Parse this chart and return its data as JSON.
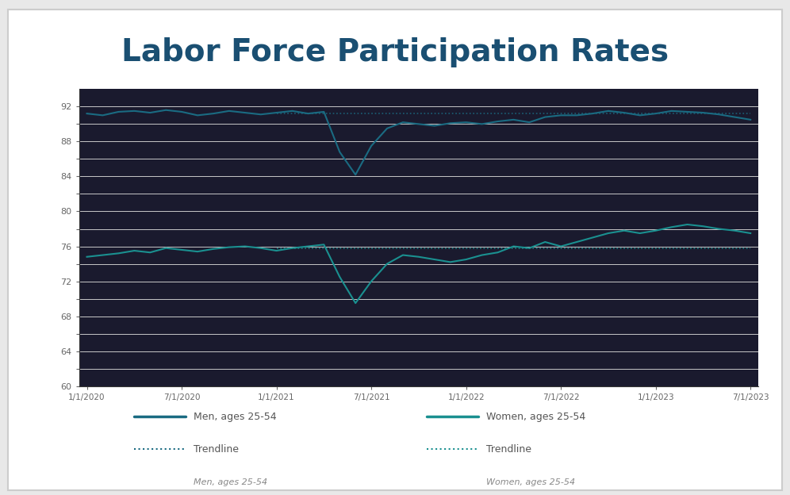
{
  "title": "Labor Force Participation Rates",
  "title_color": "#1a4f72",
  "title_fontsize": 28,
  "title_fontweight": "bold",
  "background_color": "#f0f0f0",
  "plot_bg_color": "#1a1a2e",
  "outer_bg_color": "#d8d8d8",
  "grid_color": "#c8c8c8",
  "tick_color": "#666666",
  "spine_color": "#333333",
  "color_men": "#1a6b82",
  "color_women": "#1a9090",
  "x_labels": [
    "1/1/2020",
    "7/1/2020",
    "1/1/2021",
    "7/1/2021",
    "1/1/2022",
    "7/1/2022",
    "1/1/2023",
    "7/1/2023"
  ],
  "x_tick_months": [
    0,
    6,
    12,
    18,
    24,
    30,
    36,
    42
  ],
  "ylim_bottom": 60,
  "ylim_top": 94,
  "ytick_vals": [
    60,
    62,
    64,
    66,
    68,
    70,
    72,
    74,
    76,
    78,
    80,
    82,
    84,
    86,
    88,
    90,
    92
  ],
  "men_actual_x": [
    0,
    1,
    2,
    3,
    4,
    5,
    6,
    7,
    8,
    9,
    10,
    11,
    12,
    13,
    14,
    15,
    16,
    17,
    18,
    19,
    20,
    21,
    22,
    23,
    24,
    25,
    26,
    27,
    28,
    29,
    30,
    31,
    32,
    33,
    34,
    35,
    36,
    37,
    38,
    39,
    40,
    41,
    42
  ],
  "men_actual_y": [
    91.2,
    91.0,
    91.4,
    91.5,
    91.3,
    91.6,
    91.4,
    91.0,
    91.2,
    91.5,
    91.3,
    91.1,
    91.3,
    91.5,
    91.2,
    91.4,
    86.8,
    84.2,
    87.5,
    89.5,
    90.2,
    90.0,
    89.8,
    90.1,
    90.2,
    90.0,
    90.3,
    90.5,
    90.2,
    90.8,
    91.0,
    91.0,
    91.2,
    91.5,
    91.3,
    91.0,
    91.2,
    91.5,
    91.4,
    91.3,
    91.1,
    90.8,
    90.5
  ],
  "men_trend_x": [
    12,
    13,
    14,
    15,
    16,
    17,
    18,
    19,
    20,
    21,
    22,
    23,
    24,
    25,
    26,
    27,
    28,
    29,
    30,
    31,
    32,
    33,
    34,
    35,
    36,
    37,
    38,
    39,
    40,
    41,
    42
  ],
  "men_trend_y": [
    91.2,
    91.2,
    91.2,
    91.2,
    91.2,
    91.2,
    91.2,
    91.2,
    91.2,
    91.2,
    91.2,
    91.2,
    91.2,
    91.2,
    91.2,
    91.2,
    91.2,
    91.2,
    91.2,
    91.2,
    91.2,
    91.2,
    91.2,
    91.2,
    91.2,
    91.2,
    91.2,
    91.2,
    91.2,
    91.2,
    91.2
  ],
  "women_actual_x": [
    0,
    1,
    2,
    3,
    4,
    5,
    6,
    7,
    8,
    9,
    10,
    11,
    12,
    13,
    14,
    15,
    16,
    17,
    18,
    19,
    20,
    21,
    22,
    23,
    24,
    25,
    26,
    27,
    28,
    29,
    30,
    31,
    32,
    33,
    34,
    35,
    36,
    37,
    38,
    39,
    40,
    41,
    42
  ],
  "women_actual_y": [
    74.8,
    75.0,
    75.2,
    75.5,
    75.3,
    75.8,
    75.6,
    75.4,
    75.7,
    75.9,
    76.0,
    75.8,
    75.5,
    75.8,
    76.0,
    76.2,
    72.5,
    69.5,
    72.0,
    74.0,
    75.0,
    74.8,
    74.5,
    74.2,
    74.5,
    75.0,
    75.3,
    76.0,
    75.8,
    76.5,
    76.0,
    76.5,
    77.0,
    77.5,
    77.8,
    77.5,
    77.8,
    78.2,
    78.5,
    78.3,
    78.0,
    77.8,
    77.5
  ],
  "women_trend_x": [
    12,
    13,
    14,
    15,
    16,
    17,
    18,
    19,
    20,
    21,
    22,
    23,
    24,
    25,
    26,
    27,
    28,
    29,
    30,
    31,
    32,
    33,
    34,
    35,
    36,
    37,
    38,
    39,
    40,
    41,
    42
  ],
  "women_trend_y": [
    75.8,
    75.8,
    75.8,
    75.8,
    75.8,
    75.8,
    75.8,
    75.8,
    75.8,
    75.8,
    75.8,
    75.8,
    75.8,
    75.8,
    75.8,
    75.8,
    75.8,
    75.8,
    75.8,
    75.8,
    75.8,
    75.8,
    75.8,
    75.8,
    75.8,
    75.8,
    75.8,
    75.8,
    75.8,
    75.8,
    75.8
  ],
  "legend_men_solid": "Men, ages 25-54",
  "legend_women_solid": "Women, ages 25-54",
  "legend_trendline": "Trendline",
  "legend_men_sub": "Men, ages 25-54",
  "legend_women_sub": "Women, ages 25-54"
}
